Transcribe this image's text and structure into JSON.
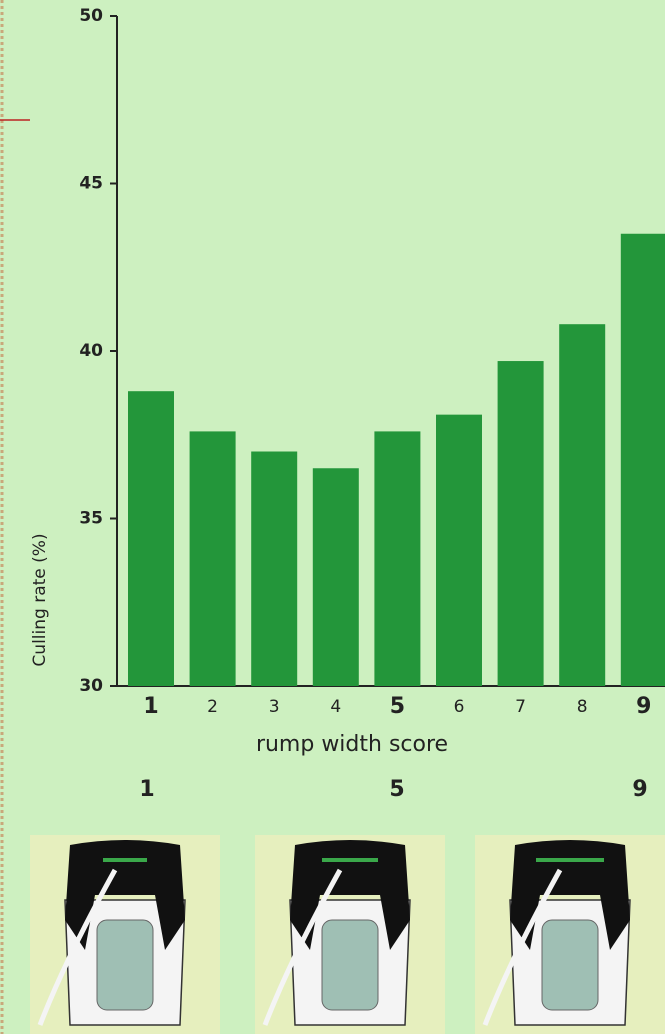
{
  "chart_data": {
    "type": "bar",
    "y_label": "Culling rate (%)",
    "x_label": "rump width score",
    "categories": [
      "1",
      "2",
      "3",
      "4",
      "5",
      "6",
      "7",
      "8",
      "9"
    ],
    "values": [
      38.8,
      37.6,
      37.0,
      36.5,
      37.6,
      38.1,
      39.7,
      40.8,
      43.5
    ],
    "color": "#23963a",
    "ylim": [
      30,
      50
    ],
    "yticks": [
      30,
      35,
      40,
      45,
      50
    ],
    "grid": false
  },
  "illustrations": {
    "labels": [
      "1",
      "5",
      "9"
    ]
  }
}
